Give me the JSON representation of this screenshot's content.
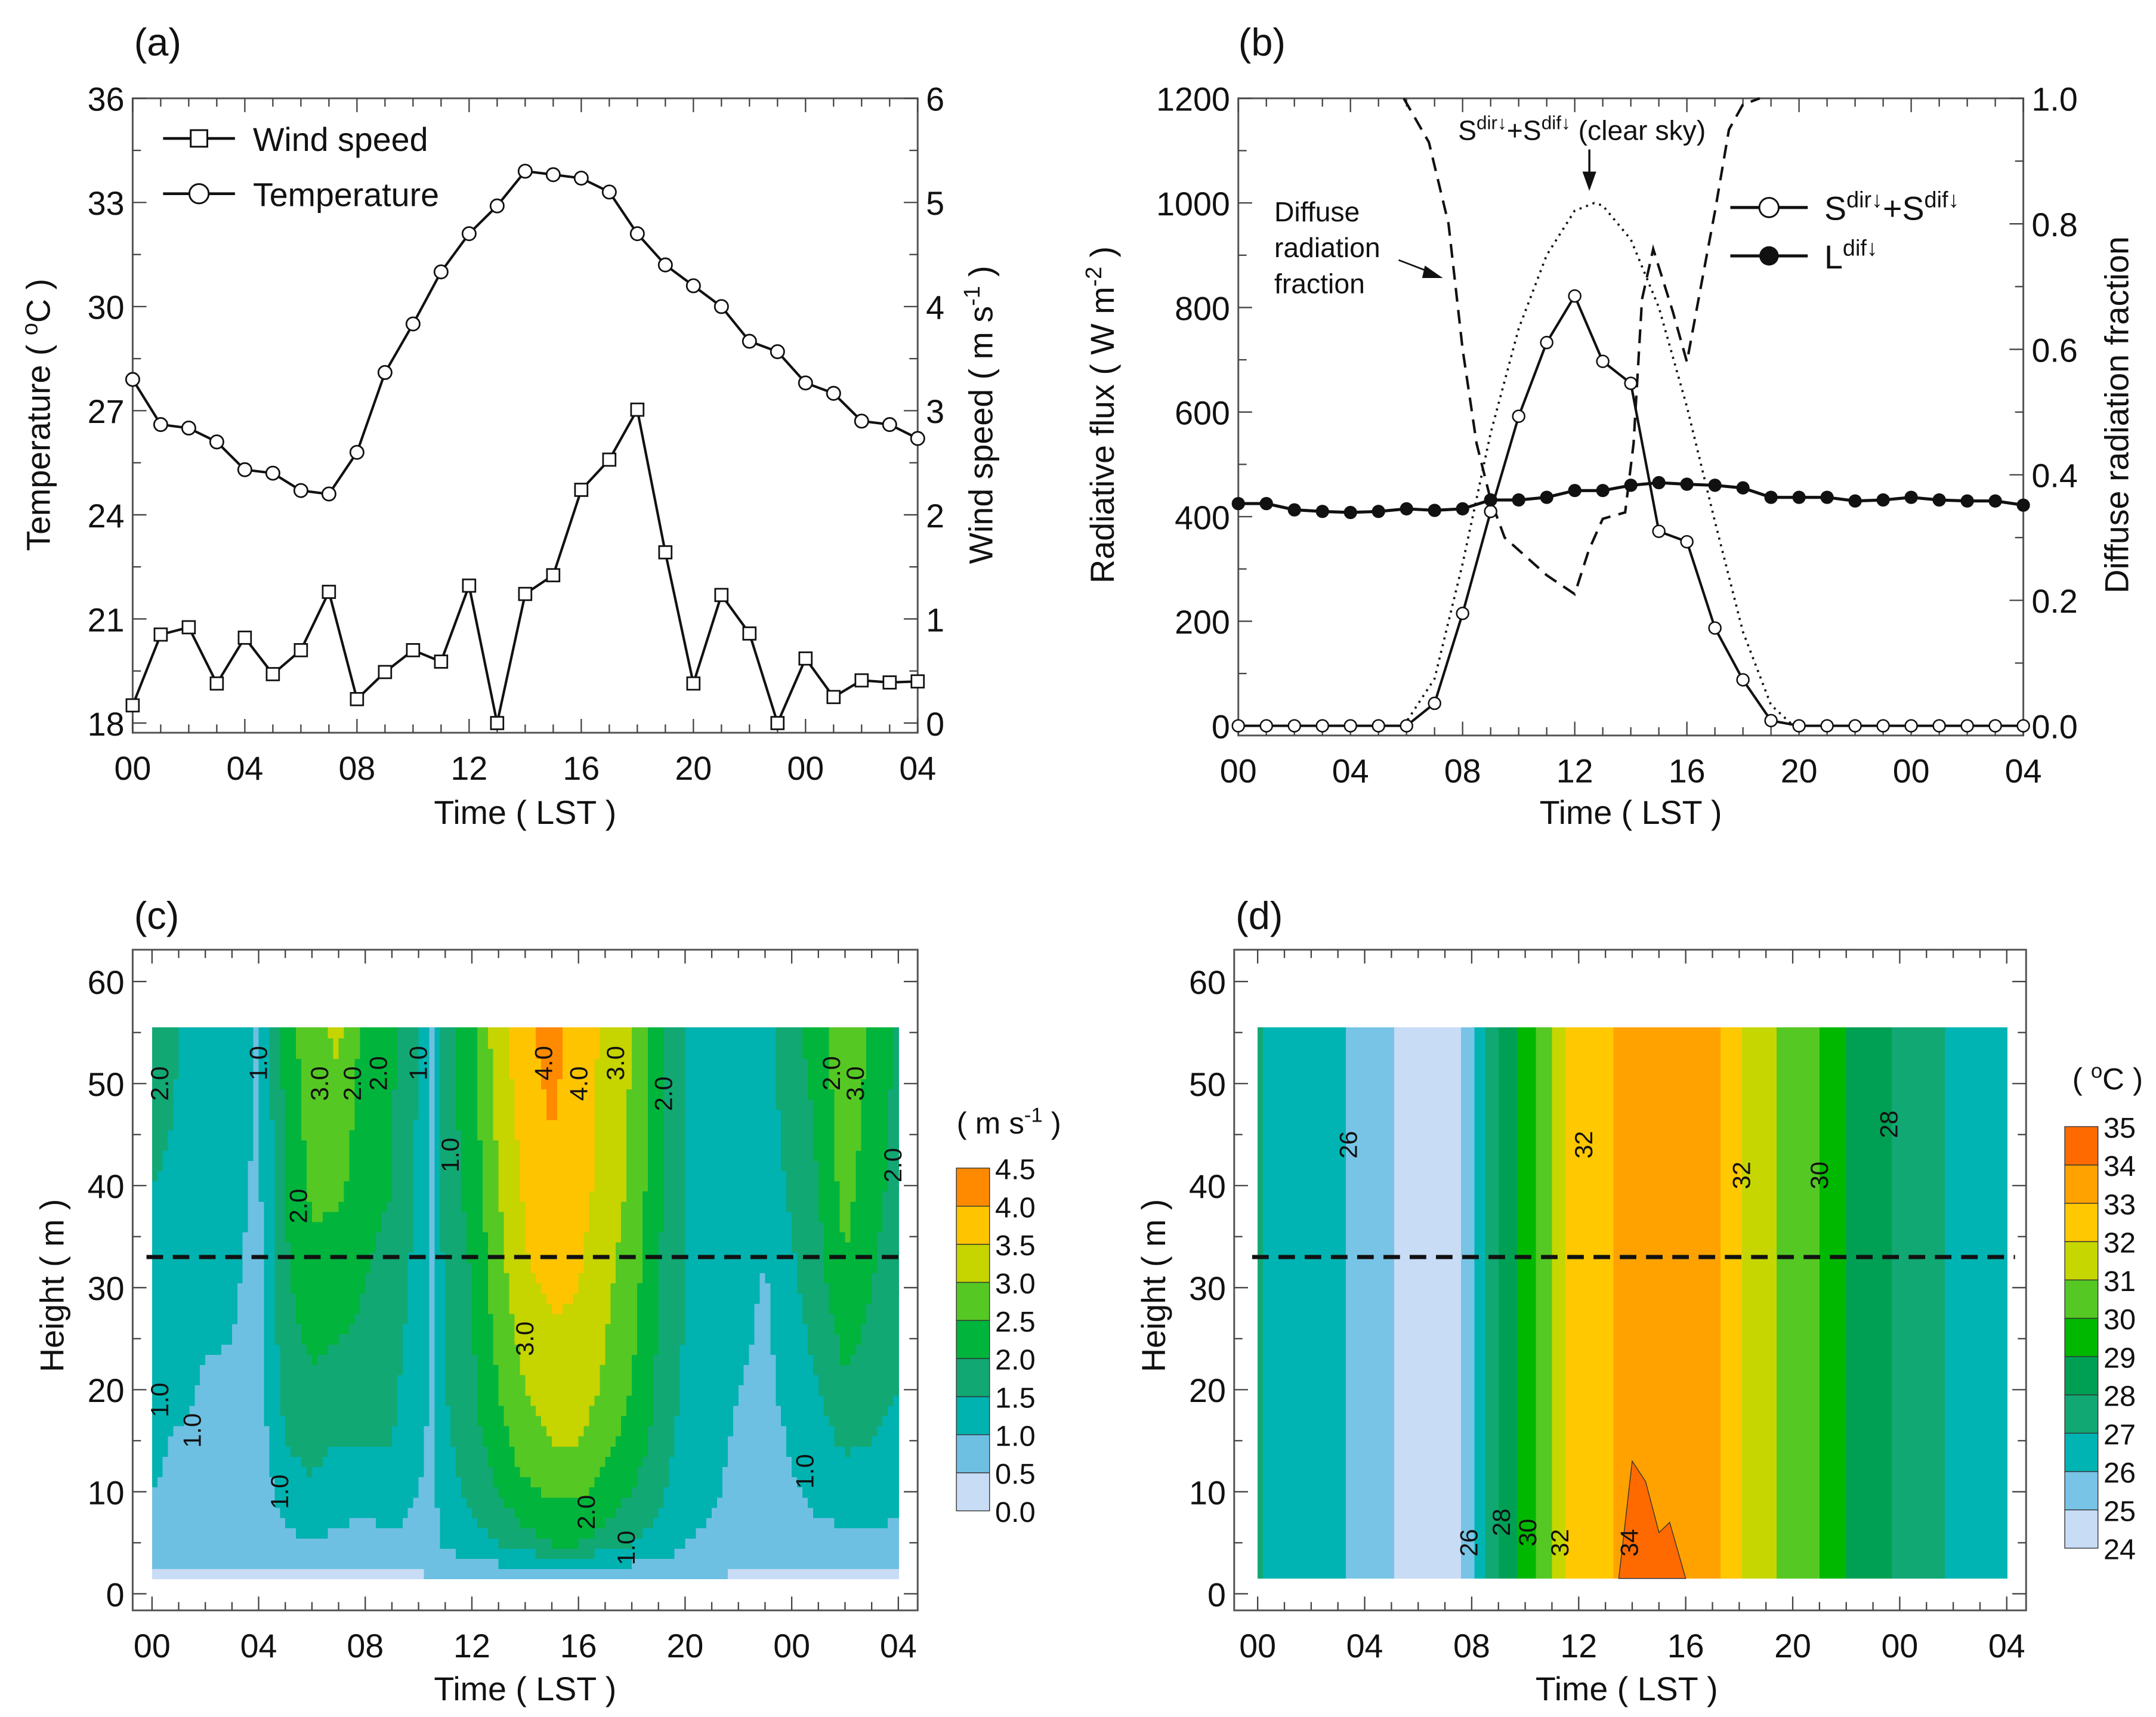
{
  "chart_data": [
    {
      "panel": "a",
      "type": "line",
      "title": "(a)",
      "xlabel": "Time ( LST )",
      "x_tick_labels": [
        "00",
        "04",
        "08",
        "12",
        "16",
        "20",
        "00",
        "04"
      ],
      "x_hours": [
        0,
        1,
        2,
        3,
        4,
        5,
        6,
        7,
        8,
        9,
        10,
        11,
        12,
        13,
        14,
        15,
        16,
        17,
        18,
        19,
        20,
        21,
        22,
        23,
        24,
        25,
        26,
        27,
        28
      ],
      "ylabel_left": [
        "Temperature ( ",
        "o",
        "C )"
      ],
      "ylabel_right": [
        "Wind speed ( m s",
        "-1",
        " )"
      ],
      "ylim_left": [
        18,
        36
      ],
      "ylim_right": [
        0,
        6
      ],
      "y_left_tick_labels": [
        "18",
        "21",
        "24",
        "27",
        "30",
        "33",
        "36"
      ],
      "y_right_tick_labels": [
        "0",
        "1",
        "2",
        "3",
        "4",
        "5",
        "6"
      ],
      "legend_placement": "top-left",
      "series": [
        {
          "name": "Wind speed",
          "marker": "square",
          "axis": "right",
          "values": [
            0.17,
            0.85,
            0.92,
            0.38,
            0.82,
            0.47,
            0.7,
            1.26,
            0.23,
            0.49,
            0.7,
            0.59,
            1.32,
            0.0,
            1.24,
            1.42,
            2.24,
            2.53,
            3.01,
            1.64,
            0.38,
            1.23,
            0.86,
            0.0,
            0.62,
            0.25,
            0.41,
            0.39,
            0.4
          ]
        },
        {
          "name": "Temperature",
          "marker": "circle",
          "axis": "left",
          "values": [
            27.9,
            26.6,
            26.5,
            26.1,
            25.3,
            25.2,
            24.7,
            24.6,
            25.8,
            28.1,
            29.5,
            31.0,
            32.1,
            32.9,
            33.9,
            33.8,
            33.7,
            33.3,
            32.1,
            31.2,
            30.6,
            30.0,
            29.0,
            28.7,
            27.8,
            27.5,
            26.7,
            26.6,
            26.2
          ]
        }
      ]
    },
    {
      "panel": "b",
      "type": "line",
      "title": "(b)",
      "xlabel": "Time ( LST )",
      "x_tick_labels": [
        "00",
        "04",
        "08",
        "12",
        "16",
        "20",
        "00",
        "04"
      ],
      "x_hours": [
        0,
        1,
        2,
        3,
        4,
        5,
        6,
        7,
        8,
        9,
        10,
        11,
        12,
        13,
        14,
        15,
        16,
        17,
        18,
        19,
        20,
        21,
        22,
        23,
        24,
        25,
        26,
        27,
        28
      ],
      "ylabel_left": [
        "Radiative flux ( W m",
        "-2",
        " )"
      ],
      "ylabel_right": [
        "Diffuse radiation fraction"
      ],
      "ylim_left": [
        0,
        1200
      ],
      "ylim_right": [
        0,
        1
      ],
      "y_left_tick_labels": [
        "0",
        "200",
        "400",
        "600",
        "800",
        "1000",
        "1200"
      ],
      "y_right_tick_labels": [
        "0.0",
        "0.2",
        "0.4",
        "0.6",
        "0.8",
        "1.0"
      ],
      "legend_placement": "top-right",
      "series": [
        {
          "name": [
            "S",
            "dir↓",
            "+S",
            "dif↓"
          ],
          "marker": "open-circle",
          "axis": "left",
          "values": [
            0,
            0,
            0,
            0,
            0,
            0,
            0,
            43,
            215,
            410,
            592,
            733,
            822,
            697,
            655,
            372,
            352,
            187,
            88,
            10,
            0,
            0,
            0,
            0,
            0,
            0,
            0,
            0,
            0
          ]
        },
        {
          "name": [
            "L",
            "dif↓"
          ],
          "marker": "filled-circle",
          "axis": "left",
          "values": [
            425,
            425,
            413,
            410,
            408,
            410,
            415,
            412,
            415,
            432,
            432,
            437,
            450,
            450,
            460,
            465,
            462,
            460,
            455,
            437,
            437,
            437,
            430,
            432,
            437,
            432,
            430,
            430,
            422
          ]
        },
        {
          "name": "clear-sky shortwave",
          "style": "dotted",
          "axis": "left",
          "points": [
            [
              5.9,
              0
            ],
            [
              7,
              90
            ],
            [
              8,
              310
            ],
            [
              9,
              560
            ],
            [
              10,
              760
            ],
            [
              11,
              900
            ],
            [
              12,
              985
            ],
            [
              12.7,
              1000
            ],
            [
              13,
              995
            ],
            [
              14,
              930
            ],
            [
              15,
              800
            ],
            [
              16,
              610
            ],
            [
              17,
              390
            ],
            [
              18,
              180
            ],
            [
              19,
              40
            ],
            [
              19.8,
              0
            ]
          ]
        },
        {
          "name": "diffuse radiation fraction",
          "style": "dashed",
          "axis": "right",
          "points": [
            [
              5.9,
              1.0
            ],
            [
              6.8,
              0.93
            ],
            [
              7.5,
              0.8
            ],
            [
              8,
              0.6
            ],
            [
              8.5,
              0.45
            ],
            [
              9,
              0.36
            ],
            [
              9.5,
              0.3
            ],
            [
              10,
              0.28
            ],
            [
              11,
              0.24
            ],
            [
              12,
              0.21
            ],
            [
              12.5,
              0.28
            ],
            [
              13,
              0.33
            ],
            [
              13.8,
              0.34
            ],
            [
              14.1,
              0.45
            ],
            [
              14.4,
              0.68
            ],
            [
              14.8,
              0.76
            ],
            [
              15.5,
              0.66
            ],
            [
              16,
              0.58
            ],
            [
              16.5,
              0.7
            ],
            [
              17,
              0.82
            ],
            [
              17.5,
              0.95
            ],
            [
              18,
              0.99
            ],
            [
              18.6,
              1.0
            ]
          ]
        }
      ],
      "annotations": {
        "clear_sky": [
          "S",
          "dir↓",
          "+S",
          "dif↓",
          " (clear sky)"
        ],
        "diffuse": [
          "Diffuse",
          "radiation",
          "fraction"
        ]
      }
    },
    {
      "panel": "c",
      "type": "heatmap",
      "title": "(c)",
      "xlabel": "Time ( LST )",
      "ylabel": "Height ( m )",
      "x_tick_labels": [
        "00",
        "04",
        "08",
        "12",
        "16",
        "20",
        "00",
        "04"
      ],
      "y_tick_labels": [
        "0",
        "10",
        "20",
        "30",
        "40",
        "50",
        "60"
      ],
      "ylim": [
        0,
        60
      ],
      "reference_height": 33,
      "colorbar_unit": [
        "( m s",
        "-1",
        " )"
      ],
      "colorbar_labels": [
        "0.0",
        "0.5",
        "1.0",
        "1.5",
        "2.0",
        "2.5",
        "3.0",
        "3.5",
        "4.0",
        "4.5"
      ],
      "colors": [
        "#c8dcf6",
        "#6ec0e2",
        "#00b2b0",
        "#12a873",
        "#00b43c",
        "#55c824",
        "#c6d400",
        "#ffc400",
        "#ff8a00"
      ],
      "heights": [
        1.5,
        3,
        5,
        10,
        15,
        20,
        30,
        40,
        55.5
      ],
      "times": [
        0,
        1,
        2,
        3,
        4,
        5,
        6,
        7,
        8,
        9,
        10,
        10.5,
        11,
        12,
        13,
        14,
        15,
        16,
        17,
        18,
        19,
        20,
        21,
        22,
        23,
        24,
        25,
        26,
        27,
        28
      ],
      "wind_speed": [
        [
          0.3,
          0.5,
          0.8,
          1.0,
          1.1,
          1.2,
          1.3,
          1.5,
          1.9
        ],
        [
          0.4,
          0.6,
          0.8,
          0.9,
          0.95,
          1.1,
          1.3,
          1.4,
          1.5
        ],
        [
          0.4,
          0.6,
          0.7,
          0.8,
          0.9,
          0.95,
          1.1,
          1.3,
          1.4
        ],
        [
          0.4,
          0.6,
          0.7,
          0.8,
          0.85,
          0.95,
          1.05,
          1.2,
          1.3
        ],
        [
          0.4,
          0.5,
          0.6,
          0.7,
          0.75,
          0.8,
          0.85,
          0.9,
          0.95
        ],
        [
          0.3,
          0.6,
          0.9,
          1.2,
          1.5,
          1.7,
          1.9,
          2.0,
          2.2
        ],
        [
          0.3,
          0.7,
          1.0,
          1.4,
          1.7,
          1.9,
          2.3,
          2.6,
          2.9
        ],
        [
          0.3,
          0.6,
          0.9,
          1.2,
          1.5,
          1.8,
          2.2,
          2.6,
          3.1
        ],
        [
          0.3,
          0.6,
          0.8,
          1.2,
          1.5,
          1.8,
          2.0,
          2.2,
          2.3
        ],
        [
          0.3,
          0.6,
          0.9,
          1.3,
          1.5,
          1.6,
          1.8,
          2.0,
          2.1
        ],
        [
          0.4,
          0.6,
          0.8,
          1.0,
          1.1,
          1.2,
          1.3,
          1.4,
          1.5
        ],
        [
          0.5,
          0.7,
          0.8,
          0.85,
          0.9,
          0.92,
          0.95,
          0.97,
          0.99
        ],
        [
          0.4,
          0.8,
          1.1,
          1.3,
          1.4,
          1.5,
          1.6,
          1.7,
          1.8
        ],
        [
          0.5,
          0.9,
          1.3,
          1.6,
          1.8,
          1.9,
          2.0,
          2.2,
          2.4
        ],
        [
          0.5,
          1.0,
          1.5,
          2.0,
          2.3,
          2.5,
          2.8,
          3.0,
          3.3
        ],
        [
          0.4,
          1.1,
          1.8,
          2.4,
          2.8,
          3.0,
          3.4,
          3.6,
          3.9
        ],
        [
          0.4,
          1.2,
          2.0,
          2.6,
          3.0,
          3.2,
          3.6,
          3.9,
          4.2
        ],
        [
          0.4,
          1.2,
          2.0,
          2.6,
          3.0,
          3.3,
          3.5,
          3.7,
          3.8
        ],
        [
          0.4,
          1.1,
          1.8,
          2.3,
          2.6,
          2.9,
          3.1,
          3.3,
          3.4
        ],
        [
          0.4,
          1.0,
          1.5,
          2.0,
          2.3,
          2.5,
          2.7,
          2.9,
          3.0
        ],
        [
          0.4,
          0.9,
          1.3,
          1.6,
          1.8,
          1.9,
          2.0,
          2.1,
          2.1
        ],
        [
          0.5,
          0.8,
          1.0,
          1.2,
          1.3,
          1.4,
          1.5,
          1.5,
          1.5
        ],
        [
          0.5,
          0.7,
          0.9,
          1.1,
          1.2,
          1.3,
          1.4,
          1.4,
          1.4
        ],
        [
          0.4,
          0.6,
          0.7,
          0.8,
          0.9,
          1.0,
          1.2,
          1.3,
          1.4
        ],
        [
          0.4,
          0.5,
          0.6,
          0.7,
          0.8,
          0.85,
          0.95,
          1.2,
          1.3
        ],
        [
          0.4,
          0.6,
          0.8,
          0.95,
          1.05,
          1.2,
          1.4,
          1.6,
          1.9
        ],
        [
          0.4,
          0.6,
          0.9,
          1.1,
          1.3,
          1.5,
          1.8,
          2.0,
          2.2
        ],
        [
          0.4,
          0.7,
          0.9,
          1.2,
          1.6,
          1.9,
          2.4,
          2.7,
          3.0
        ],
        [
          0.4,
          0.6,
          0.9,
          1.2,
          1.5,
          1.7,
          2.0,
          2.2,
          2.4
        ],
        [
          0.4,
          0.6,
          0.9,
          1.1,
          1.3,
          1.5,
          1.7,
          1.8,
          1.9
        ]
      ],
      "contour_labels": [
        {
          "text": "2.0",
          "t": 0.3,
          "h": 50
        },
        {
          "text": "1.0",
          "t": 4.0,
          "h": 52
        },
        {
          "text": "3.0",
          "t": 6.3,
          "h": 50
        },
        {
          "text": "2.0",
          "t": 6.8,
          "h": 50
        },
        {
          "text": "2.0",
          "t": 8.5,
          "h": 51
        },
        {
          "text": "1.0",
          "t": 10,
          "h": 52
        },
        {
          "text": "1.0",
          "t": 11.2,
          "h": 43
        },
        {
          "text": "2.0",
          "t": 5.5,
          "h": 38
        },
        {
          "text": "4.0",
          "t": 14.7,
          "h": 52
        },
        {
          "text": "4.0",
          "t": 15.3,
          "h": 50
        },
        {
          "text": "3.0",
          "t": 17.4,
          "h": 52
        },
        {
          "text": "2.0",
          "t": 19.2,
          "h": 49
        },
        {
          "text": "3.0",
          "t": 14,
          "h": 25
        },
        {
          "text": "2.0",
          "t": 16.3,
          "h": 8
        },
        {
          "text": "1.0",
          "t": 17.8,
          "h": 4.5
        },
        {
          "text": "2.0",
          "t": 25.5,
          "h": 51
        },
        {
          "text": "3.0",
          "t": 26.4,
          "h": 50
        },
        {
          "text": "2.0",
          "t": 27.8,
          "h": 42
        },
        {
          "text": "1.0",
          "t": 0.3,
          "h": 19
        },
        {
          "text": "1.0",
          "t": 1,
          "h": 16
        },
        {
          "text": "1.0",
          "t": 4.8,
          "h": 10
        },
        {
          "text": "1.0",
          "t": 24.5,
          "h": 12
        }
      ]
    },
    {
      "panel": "d",
      "type": "heatmap",
      "title": "(d)",
      "xlabel": "Time ( LST )",
      "ylabel": "Height ( m )",
      "x_tick_labels": [
        "00",
        "04",
        "08",
        "12",
        "16",
        "20",
        "00",
        "04"
      ],
      "y_tick_labels": [
        "0",
        "10",
        "20",
        "30",
        "40",
        "50",
        "60"
      ],
      "ylim": [
        0,
        60
      ],
      "reference_height": 33,
      "colorbar_unit": [
        "( ",
        "o",
        "C )"
      ],
      "colorbar_labels": [
        "24",
        "25",
        "26",
        "27",
        "28",
        "29",
        "30",
        "31",
        "32",
        "33",
        "34",
        "35"
      ],
      "colors": [
        "#c8dcf6",
        "#78c4e6",
        "#00b4b4",
        "#12a874",
        "#00a054",
        "#00b800",
        "#55c824",
        "#c6d600",
        "#ffc800",
        "#ffa200",
        "#ff6a00"
      ],
      "column_times": [
        0,
        0.5,
        3.3,
        5.1,
        7.5,
        7.6,
        8.1,
        8.5,
        9,
        9.7,
        10.4,
        11,
        11.5,
        13.3,
        17.3,
        18.1,
        19.4,
        21,
        22,
        23.7,
        25.7,
        28
      ],
      "column_temperature": [
        27.05,
        26.9,
        26.0,
        25.0,
        24.99,
        25.0,
        26.0,
        27.0,
        28.0,
        29.0,
        30.0,
        31.0,
        32.0,
        33.0,
        33.0,
        32.0,
        31.0,
        30.0,
        29.0,
        28.0,
        27.0,
        26.5
      ],
      "hot_core_34C": [
        [
          13.5,
          1.5
        ],
        [
          14,
          13
        ],
        [
          14.5,
          11
        ],
        [
          15,
          6
        ],
        [
          15.4,
          7
        ],
        [
          16,
          1.5
        ]
      ],
      "contour_labels": [
        {
          "text": "26",
          "t": 3.4,
          "h": 44
        },
        {
          "text": "32",
          "t": 12.2,
          "h": 44
        },
        {
          "text": "32",
          "t": 18.1,
          "h": 41
        },
        {
          "text": "30",
          "t": 21,
          "h": 41
        },
        {
          "text": "28",
          "t": 23.6,
          "h": 46
        },
        {
          "text": "26",
          "t": 7.9,
          "h": 5
        },
        {
          "text": "28",
          "t": 8.6,
          "h": 7
        },
        {
          "text": "30",
          "t": 10.1,
          "h": 6
        },
        {
          "text": "32",
          "t": 11.3,
          "h": 5
        },
        {
          "text": "34",
          "t": 13.9,
          "h": 5
        }
      ]
    }
  ]
}
